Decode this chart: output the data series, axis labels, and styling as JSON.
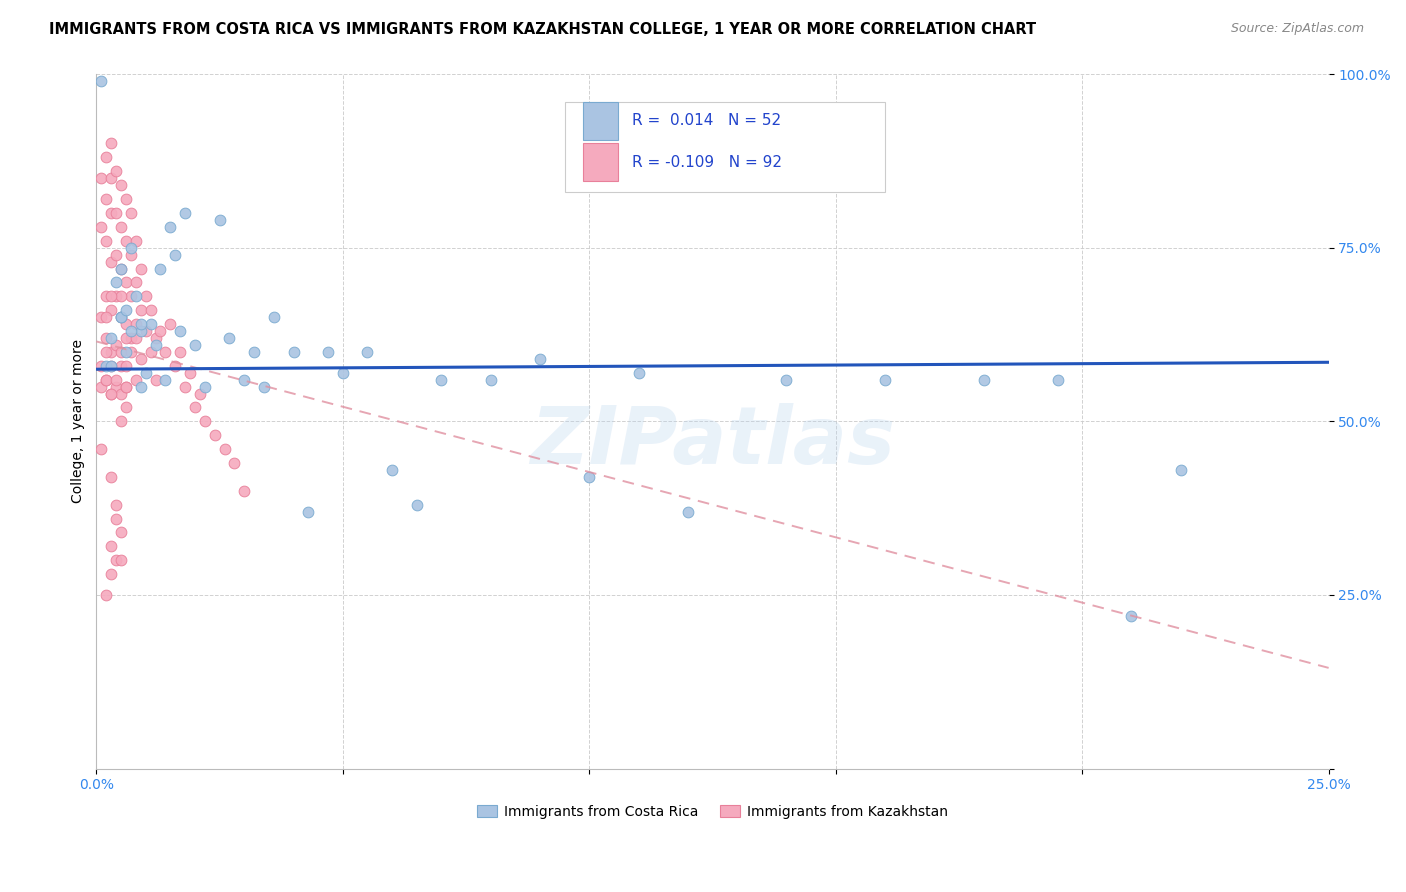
{
  "title": "IMMIGRANTS FROM COSTA RICA VS IMMIGRANTS FROM KAZAKHSTAN COLLEGE, 1 YEAR OR MORE CORRELATION CHART",
  "source": "Source: ZipAtlas.com",
  "ylabel": "College, 1 year or more",
  "xlim": [
    0.0,
    0.25
  ],
  "ylim": [
    0.0,
    1.0
  ],
  "xticks": [
    0.0,
    0.05,
    0.1,
    0.15,
    0.2,
    0.25
  ],
  "yticks": [
    0.0,
    0.25,
    0.5,
    0.75,
    1.0
  ],
  "xticklabels": [
    "0.0%",
    "",
    "",
    "",
    "",
    "25.0%"
  ],
  "yticklabels": [
    "",
    "25.0%",
    "50.0%",
    "75.0%",
    "100.0%"
  ],
  "legend_line1": "R =  0.014   N = 52",
  "legend_line2": "R = -0.109   N = 92",
  "legend_label_blue": "Immigrants from Costa Rica",
  "legend_label_pink": "Immigrants from Kazakhstan",
  "dot_color_blue": "#aac4e2",
  "dot_color_pink": "#f5aabe",
  "dot_edge_blue": "#7aaad0",
  "dot_edge_pink": "#e8809a",
  "trend_color_blue": "#2255bb",
  "trend_color_pink": "#e090a0",
  "watermark": "ZIPatlas",
  "title_fontsize": 10.5,
  "source_fontsize": 9,
  "axis_label_fontsize": 10,
  "tick_fontsize": 10,
  "blue_x": [
    0.001,
    0.002,
    0.003,
    0.004,
    0.005,
    0.005,
    0.006,
    0.007,
    0.008,
    0.009,
    0.009,
    0.01,
    0.011,
    0.012,
    0.013,
    0.014,
    0.015,
    0.016,
    0.017,
    0.018,
    0.02,
    0.022,
    0.025,
    0.027,
    0.03,
    0.032,
    0.034,
    0.036,
    0.04,
    0.043,
    0.047,
    0.05,
    0.055,
    0.06,
    0.065,
    0.07,
    0.08,
    0.09,
    0.1,
    0.11,
    0.12,
    0.14,
    0.16,
    0.18,
    0.195,
    0.21,
    0.22,
    0.005,
    0.007,
    0.009,
    0.003,
    0.006
  ],
  "blue_y": [
    0.99,
    0.58,
    0.62,
    0.7,
    0.65,
    0.72,
    0.6,
    0.75,
    0.68,
    0.55,
    0.63,
    0.57,
    0.64,
    0.61,
    0.72,
    0.56,
    0.78,
    0.74,
    0.63,
    0.8,
    0.61,
    0.55,
    0.79,
    0.62,
    0.56,
    0.6,
    0.55,
    0.65,
    0.6,
    0.37,
    0.6,
    0.57,
    0.6,
    0.43,
    0.38,
    0.56,
    0.56,
    0.59,
    0.42,
    0.57,
    0.37,
    0.56,
    0.56,
    0.56,
    0.56,
    0.22,
    0.43,
    0.65,
    0.63,
    0.64,
    0.58,
    0.66
  ],
  "pink_x": [
    0.001,
    0.001,
    0.001,
    0.001,
    0.001,
    0.002,
    0.002,
    0.002,
    0.002,
    0.002,
    0.002,
    0.003,
    0.003,
    0.003,
    0.003,
    0.003,
    0.003,
    0.003,
    0.004,
    0.004,
    0.004,
    0.004,
    0.004,
    0.004,
    0.005,
    0.005,
    0.005,
    0.005,
    0.005,
    0.005,
    0.005,
    0.005,
    0.006,
    0.006,
    0.006,
    0.006,
    0.006,
    0.006,
    0.006,
    0.007,
    0.007,
    0.007,
    0.007,
    0.008,
    0.008,
    0.008,
    0.008,
    0.009,
    0.009,
    0.009,
    0.01,
    0.01,
    0.011,
    0.011,
    0.012,
    0.012,
    0.013,
    0.014,
    0.015,
    0.016,
    0.017,
    0.018,
    0.019,
    0.02,
    0.021,
    0.022,
    0.024,
    0.026,
    0.028,
    0.03,
    0.001,
    0.002,
    0.002,
    0.003,
    0.003,
    0.004,
    0.005,
    0.006,
    0.007,
    0.008,
    0.002,
    0.003,
    0.004,
    0.003,
    0.004,
    0.005,
    0.004,
    0.003,
    0.005,
    0.006,
    0.002,
    0.003
  ],
  "pink_y": [
    0.85,
    0.78,
    0.65,
    0.58,
    0.55,
    0.88,
    0.82,
    0.76,
    0.68,
    0.62,
    0.56,
    0.9,
    0.85,
    0.8,
    0.73,
    0.66,
    0.6,
    0.54,
    0.86,
    0.8,
    0.74,
    0.68,
    0.61,
    0.55,
    0.84,
    0.78,
    0.72,
    0.65,
    0.6,
    0.54,
    0.5,
    0.58,
    0.82,
    0.76,
    0.7,
    0.64,
    0.58,
    0.52,
    0.55,
    0.8,
    0.74,
    0.68,
    0.62,
    0.76,
    0.7,
    0.64,
    0.56,
    0.72,
    0.66,
    0.59,
    0.68,
    0.63,
    0.66,
    0.6,
    0.62,
    0.56,
    0.63,
    0.6,
    0.64,
    0.58,
    0.6,
    0.55,
    0.57,
    0.52,
    0.54,
    0.5,
    0.48,
    0.46,
    0.44,
    0.4,
    0.46,
    0.6,
    0.56,
    0.58,
    0.54,
    0.56,
    0.68,
    0.62,
    0.6,
    0.62,
    0.25,
    0.28,
    0.3,
    0.32,
    0.36,
    0.3,
    0.38,
    0.42,
    0.34,
    0.55,
    0.65,
    0.68
  ],
  "blue_trend_y0": 0.575,
  "blue_trend_y1": 0.585,
  "pink_trend_y0": 0.615,
  "pink_trend_y1": 0.145
}
